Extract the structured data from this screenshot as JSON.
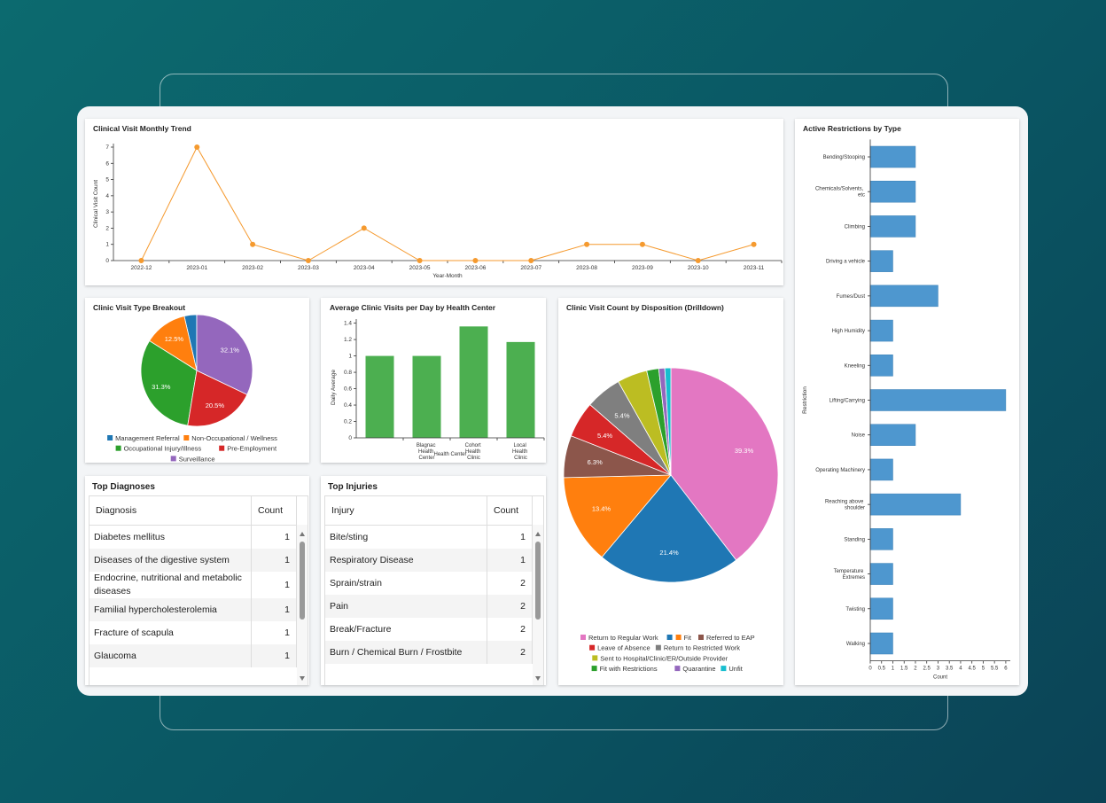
{
  "chart_data": [
    {
      "type": "line",
      "title": "Clinical Visit Monthly Trend",
      "x_label": "Year-Month",
      "y_label": "Clinical Visit Count",
      "categories": [
        "2022-12",
        "2023-01",
        "2023-02",
        "2023-03",
        "2023-04",
        "2023-05",
        "2023-06",
        "2023-07",
        "2023-08",
        "2023-09",
        "2023-10",
        "2023-11"
      ],
      "values": [
        0,
        7,
        1,
        0,
        2,
        0,
        0,
        0,
        1,
        1,
        0,
        1
      ],
      "color": "#f59a2f",
      "ylim": [
        0,
        7
      ],
      "yticks": [
        0,
        1,
        2,
        3,
        4,
        5,
        6,
        7
      ]
    },
    {
      "type": "pie",
      "title": "Clinic Visit Type Breakout",
      "direction": "counterclockwise",
      "categories": [
        "Management Referral",
        "Non-Occupational / Wellness",
        "Occupational Injury/Illness",
        "Pre-Employment",
        "Surveillance"
      ],
      "values": [
        3.6,
        12.5,
        31.3,
        20.5,
        32.1
      ],
      "value_labels": [
        null,
        "12.5%",
        "31.3%",
        "20.5%",
        "32.1%"
      ],
      "colors": [
        "#1f77b4",
        "#ff7f0e",
        "#2ca02c",
        "#d62728",
        "#9467bd"
      ]
    },
    {
      "type": "bar",
      "title": "Average Clinic Visits per Day by Health Center",
      "x_label": "Health Center",
      "y_label": "Daily Average",
      "categories": [
        null,
        "Blagnac Health Center",
        "Cohort Health Clinic",
        "Local Health Clinic"
      ],
      "values": [
        1,
        1,
        1.36,
        1.17
      ],
      "color": "#4caf50",
      "ylim": [
        0,
        1.45
      ],
      "yticks": [
        0,
        0.2,
        0.4,
        0.6,
        0.8,
        1,
        1.2,
        1.4
      ]
    },
    {
      "type": "pie",
      "title": "Clinic Visit Count by Disposition (Drilldown)",
      "direction": "clockwise",
      "categories": [
        "Return to Regular Work",
        null,
        "Fit",
        "Referred to EAP",
        "Leave of Absence",
        "Return to Restricted Work",
        "Sent to Hospital/Clinic/ER/Outside Provider",
        "Fit with Restrictions",
        "Quarantine",
        "Unfit"
      ],
      "values": [
        39.3,
        21.4,
        13.4,
        6.3,
        5.4,
        5.4,
        4.5,
        1.8,
        0.9,
        0.9
      ],
      "value_labels": [
        "39.3%",
        "21.4%",
        "13.4%",
        "6.3%",
        "5.4%",
        "5.4%",
        null,
        null,
        null,
        null
      ],
      "colors": [
        "#e377c2",
        "#1f77b4",
        "#ff7f0e",
        "#8c564b",
        "#d62728",
        "#7f7f7f",
        "#bcbd22",
        "#2ca02c",
        "#9467bd",
        "#17becf"
      ]
    },
    {
      "type": "hbar",
      "title": "Active Restrictions by Type",
      "x_label": "Count",
      "y_label": "Restriction",
      "categories": [
        "Bending/Stooping",
        "Chemicals/Solvents, etc",
        "Climbing",
        "Driving a vehicle",
        "Fumes/Dust",
        "High Humidity",
        "Kneeling",
        "Lifting/Carrying",
        "Noise",
        "Operating Machinery",
        "Reaching above shoulder",
        "Standing",
        "Temperature Extremes",
        "Twisting",
        "Walking"
      ],
      "values": [
        2,
        2,
        2,
        1,
        3,
        1,
        1,
        6,
        2,
        1,
        4,
        1,
        1,
        1,
        1
      ],
      "color": "#4e97cf",
      "xlim": [
        0,
        6.2
      ],
      "xticks": [
        0,
        0.5,
        1,
        1.5,
        2,
        2.5,
        3,
        3.5,
        4,
        4.5,
        5,
        5.5,
        6
      ]
    }
  ],
  "tables": [
    {
      "title": "Top Diagnoses",
      "columns": [
        "Diagnosis",
        "Count"
      ],
      "rows": [
        [
          "Diabetes mellitus",
          1
        ],
        [
          "Diseases of the digestive system",
          1
        ],
        [
          "Endocrine, nutritional and metabolic diseases",
          1
        ],
        [
          "Familial hypercholesterolemia",
          1
        ],
        [
          "Fracture of scapula",
          1
        ],
        [
          "Glaucoma",
          1
        ]
      ]
    },
    {
      "title": "Top Injuries",
      "columns": [
        "Injury",
        "Count"
      ],
      "rows": [
        [
          "Bite/sting",
          1
        ],
        [
          "Respiratory Disease",
          1
        ],
        [
          "Sprain/strain",
          2
        ],
        [
          "Pain",
          2
        ],
        [
          "Break/Fracture",
          2
        ],
        [
          "Burn / Chemical Burn / Frostbite",
          2
        ]
      ]
    }
  ]
}
